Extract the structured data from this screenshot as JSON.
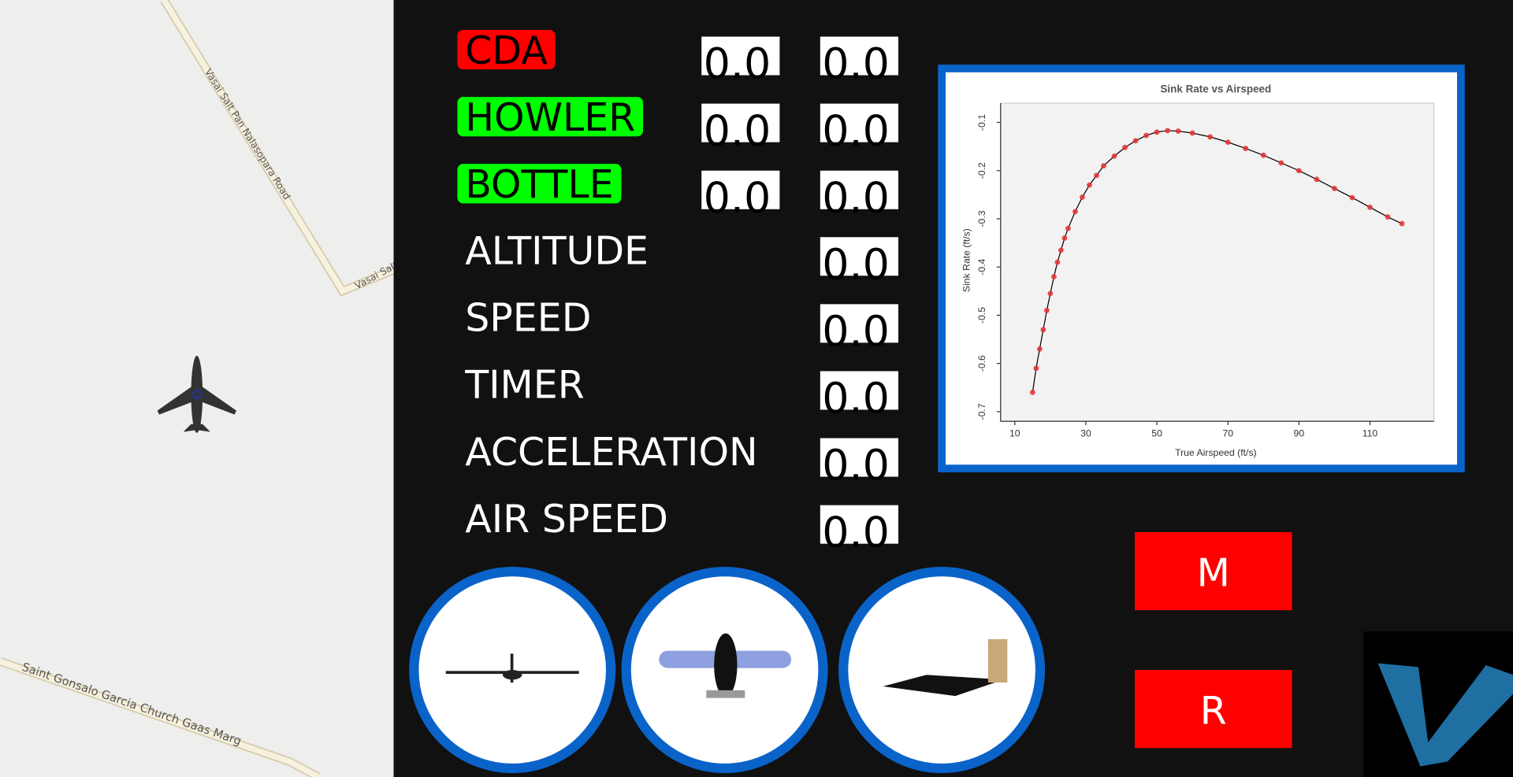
{
  "map": {
    "road_labels": [
      "Vasai Salt Pan Nalasopara Road",
      "Vasai Salt P",
      "Saint Gonsalo Garcia Church Gaas Marg"
    ]
  },
  "status": [
    {
      "label": "CDA",
      "color": "#ff0000",
      "values": [
        "0.0",
        "0.0"
      ]
    },
    {
      "label": "HOWLER",
      "color": "#00ff00",
      "values": [
        "0.0",
        "0.0"
      ]
    },
    {
      "label": "BOTTLE",
      "color": "#00ff00",
      "values": [
        "0.0",
        "0.0"
      ]
    }
  ],
  "readouts": [
    {
      "label": "ALTITUDE",
      "value": "0.0"
    },
    {
      "label": "SPEED",
      "value": "0.0"
    },
    {
      "label": "TIMER",
      "value": "0.0"
    },
    {
      "label": "ACCELERATION",
      "value": "0.0"
    },
    {
      "label": "AIR SPEED",
      "value": "0.0"
    }
  ],
  "buttons": [
    "M",
    "R"
  ],
  "chart_data": {
    "type": "scatter",
    "title": "Sink Rate vs Airspeed",
    "x_label": "True Airspeed (ft/s)",
    "y_label": "Sink Rate (ft/s)",
    "x": [
      15,
      16,
      17,
      18,
      19,
      20,
      21,
      22,
      23,
      24,
      25,
      27,
      29,
      31,
      33,
      35,
      38,
      41,
      44,
      47,
      50,
      53,
      56,
      60,
      65,
      70,
      75,
      80,
      85,
      90,
      95,
      100,
      105,
      110,
      115,
      119
    ],
    "values": [
      -0.66,
      -0.61,
      -0.57,
      -0.53,
      -0.49,
      -0.455,
      -0.42,
      -0.39,
      -0.365,
      -0.34,
      -0.32,
      -0.285,
      -0.255,
      -0.23,
      -0.21,
      -0.19,
      -0.17,
      -0.152,
      -0.138,
      -0.127,
      -0.12,
      -0.117,
      -0.118,
      -0.122,
      -0.13,
      -0.141,
      -0.154,
      -0.168,
      -0.184,
      -0.2,
      -0.218,
      -0.237,
      -0.256,
      -0.276,
      -0.296,
      -0.31
    ],
    "color": "#e83030",
    "line_color": "#000000",
    "xlim": [
      6,
      128
    ],
    "ylim": [
      -0.72,
      -0.06
    ],
    "xticks": [
      10,
      30,
      50,
      70,
      90,
      110
    ],
    "yticks": [
      -0.1,
      -0.2,
      -0.3,
      -0.4,
      -0.5,
      -0.6,
      -0.7
    ]
  }
}
